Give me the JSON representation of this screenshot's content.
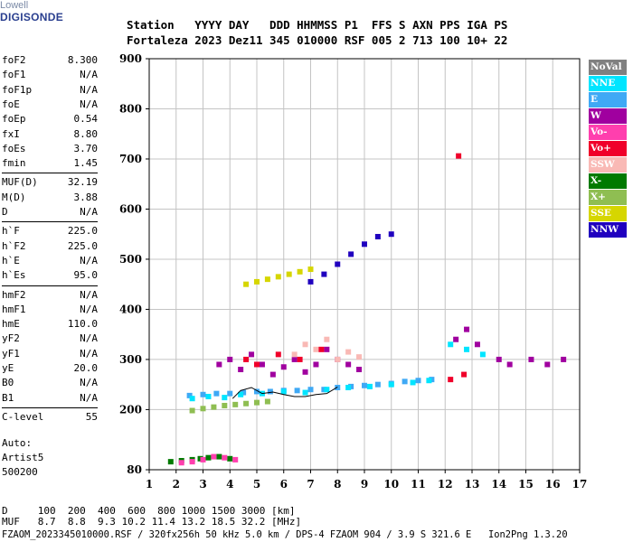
{
  "logo": {
    "top": "Lowell",
    "bottom": "DIGISONDE"
  },
  "header": {
    "line1": "Station   YYYY DAY   DDD HHMMSS P1  FFS S AXN PPS IGA PS",
    "line2": "Fortaleza 2023 Dez11 345 010000 RSF 005 2 713 100 10+ 22"
  },
  "params_group1": [
    {
      "label": "foF2",
      "value": "8.300"
    },
    {
      "label": "foF1",
      "value": "N/A"
    },
    {
      "label": "foF1p",
      "value": "N/A"
    },
    {
      "label": "foE",
      "value": "N/A"
    },
    {
      "label": "foEp",
      "value": "0.54"
    },
    {
      "label": "fxI",
      "value": "8.80"
    },
    {
      "label": "foEs",
      "value": "3.70"
    },
    {
      "label": "fmin",
      "value": "1.45"
    }
  ],
  "params_group2": [
    {
      "label": "MUF(D)",
      "value": "32.19"
    },
    {
      "label": "M(D)",
      "value": "3.88"
    },
    {
      "label": "D",
      "value": "N/A"
    }
  ],
  "params_group3": [
    {
      "label": "h`F",
      "value": "225.0"
    },
    {
      "label": "h`F2",
      "value": "225.0"
    },
    {
      "label": "h`E",
      "value": "N/A"
    },
    {
      "label": "h`Es",
      "value": "95.0"
    }
  ],
  "params_group4": [
    {
      "label": "hmF2",
      "value": "N/A"
    },
    {
      "label": "hmF1",
      "value": "N/A"
    },
    {
      "label": "hmE",
      "value": "110.0"
    },
    {
      "label": "yF2",
      "value": "N/A"
    },
    {
      "label": "yF1",
      "value": "N/A"
    },
    {
      "label": "yE",
      "value": "20.0"
    },
    {
      "label": "B0",
      "value": "N/A"
    },
    {
      "label": "B1",
      "value": "N/A"
    }
  ],
  "params_group5": [
    {
      "label": "C-level",
      "value": "55"
    }
  ],
  "auto": {
    "line1": "Auto:",
    "line2": "Artist5",
    "line3": "500200"
  },
  "footer": {
    "d_row": "D     100  200  400  600  800 1000 1500 3000 [km]",
    "muf_row": "MUF   8.7  8.8  9.3 10.2 11.4 13.2 18.5 32.2 [MHz]",
    "info": "FZAOM_2023345010000.RSF / 320fx256h 50 kHz 5.0 km / DPS-4 FZAOM 904 / 3.9 S 321.6 E   Ion2Png 1.3.20"
  },
  "legend": [
    {
      "label": "NoVal",
      "bg": "#808080",
      "fg": "#ffffff"
    },
    {
      "label": "NNE",
      "bg": "#00e5ff",
      "fg": "#ffffff"
    },
    {
      "label": "E",
      "bg": "#3fa9f5",
      "fg": "#ffffff"
    },
    {
      "label": "W",
      "bg": "#a0009f",
      "fg": "#ffffff"
    },
    {
      "label": "Vo-",
      "bg": "#ff3fae",
      "fg": "#ffffff"
    },
    {
      "label": "Vo+",
      "bg": "#f0002a",
      "fg": "#ffffff"
    },
    {
      "label": "SSW",
      "bg": "#f9b9b5",
      "fg": "#ffffff"
    },
    {
      "label": "X-",
      "bg": "#007a00",
      "fg": "#ffffff"
    },
    {
      "label": "X+",
      "bg": "#8fbe52",
      "fg": "#ffffff"
    },
    {
      "label": "SSE",
      "bg": "#d6d600",
      "fg": "#ffffff"
    },
    {
      "label": "NNW",
      "bg": "#2000bf",
      "fg": "#ffffff"
    }
  ],
  "chart_data": {
    "type": "scatter",
    "xlim": [
      1,
      17
    ],
    "ylim": [
      80,
      900
    ],
    "x_ticks": [
      1,
      2,
      3,
      4,
      5,
      6,
      7,
      8,
      9,
      10,
      11,
      12,
      13,
      14,
      15,
      16,
      17
    ],
    "y_ticks": [
      80,
      200,
      300,
      400,
      500,
      600,
      700,
      800,
      900
    ],
    "grid": true,
    "trace": {
      "x": [
        4.1,
        4.4,
        4.8,
        5.2,
        5.6,
        6.0,
        6.4,
        6.8,
        7.2,
        7.6,
        8.0
      ],
      "y": [
        222,
        238,
        244,
        232,
        235,
        230,
        226,
        226,
        230,
        232,
        245
      ]
    },
    "clusters": [
      {
        "series": "E",
        "x": [
          2.5,
          3.0,
          3.5,
          4.0,
          4.5,
          5.0,
          5.5,
          6.0,
          6.5,
          7.0,
          7.5,
          8.0,
          8.5,
          9.0,
          9.5,
          10.0,
          10.5,
          11.0,
          11.5
        ],
        "y": [
          228,
          230,
          232,
          232,
          234,
          236,
          236,
          238,
          238,
          240,
          240,
          244,
          246,
          248,
          250,
          252,
          256,
          258,
          260
        ]
      },
      {
        "series": "NNE",
        "x": [
          2.6,
          3.2,
          3.8,
          4.4,
          5.2,
          6.0,
          6.8,
          7.6,
          8.4,
          9.2,
          10.0,
          10.8,
          11.4,
          12.2,
          12.8,
          13.4
        ],
        "y": [
          222,
          226,
          224,
          230,
          232,
          236,
          234,
          240,
          244,
          246,
          250,
          254,
          258,
          330,
          320,
          310
        ]
      },
      {
        "series": "W",
        "x": [
          3.6,
          4.0,
          4.4,
          4.8,
          5.2,
          5.6,
          6.0,
          6.4,
          6.8,
          7.2,
          7.6,
          8.0,
          8.4,
          8.8,
          12.4,
          12.8,
          13.2,
          14.0,
          14.4,
          15.2,
          15.8,
          16.4
        ],
        "y": [
          290,
          300,
          280,
          310,
          290,
          270,
          285,
          300,
          275,
          290,
          320,
          300,
          290,
          280,
          340,
          360,
          330,
          300,
          290,
          300,
          290,
          300
        ]
      },
      {
        "series": "X-",
        "x": [
          1.8,
          2.2,
          2.6,
          2.9,
          3.2,
          3.6,
          4.0
        ],
        "y": [
          96,
          98,
          100,
          102,
          104,
          106,
          102
        ]
      },
      {
        "series": "Vo-",
        "x": [
          2.2,
          2.6,
          3.0,
          3.4,
          3.8,
          4.2
        ],
        "y": [
          94,
          96,
          100,
          106,
          104,
          100
        ]
      },
      {
        "series": "NNW",
        "x": [
          7.0,
          7.5,
          8.0,
          8.5,
          9.0,
          9.5,
          10.0
        ],
        "y": [
          455,
          470,
          490,
          510,
          530,
          545,
          550
        ]
      },
      {
        "series": "SSE",
        "x": [
          4.6,
          5.0,
          5.4,
          5.8,
          6.2,
          6.6,
          7.0
        ],
        "y": [
          450,
          455,
          460,
          465,
          470,
          475,
          480
        ]
      },
      {
        "series": "SSW",
        "x": [
          6.4,
          6.8,
          7.2,
          7.6,
          8.0,
          8.4,
          8.8
        ],
        "y": [
          310,
          330,
          320,
          340,
          300,
          315,
          305
        ]
      },
      {
        "series": "Vo+",
        "x": [
          4.6,
          5.0,
          5.8,
          6.6,
          7.4,
          12.2,
          12.5,
          12.7
        ],
        "y": [
          300,
          290,
          310,
          300,
          320,
          260,
          706,
          270
        ]
      },
      {
        "series": "X+",
        "x": [
          2.6,
          3.0,
          3.4,
          3.8,
          4.2,
          4.6,
          5.0,
          5.4
        ],
        "y": [
          198,
          202,
          205,
          208,
          210,
          212,
          214,
          216
        ]
      }
    ]
  }
}
